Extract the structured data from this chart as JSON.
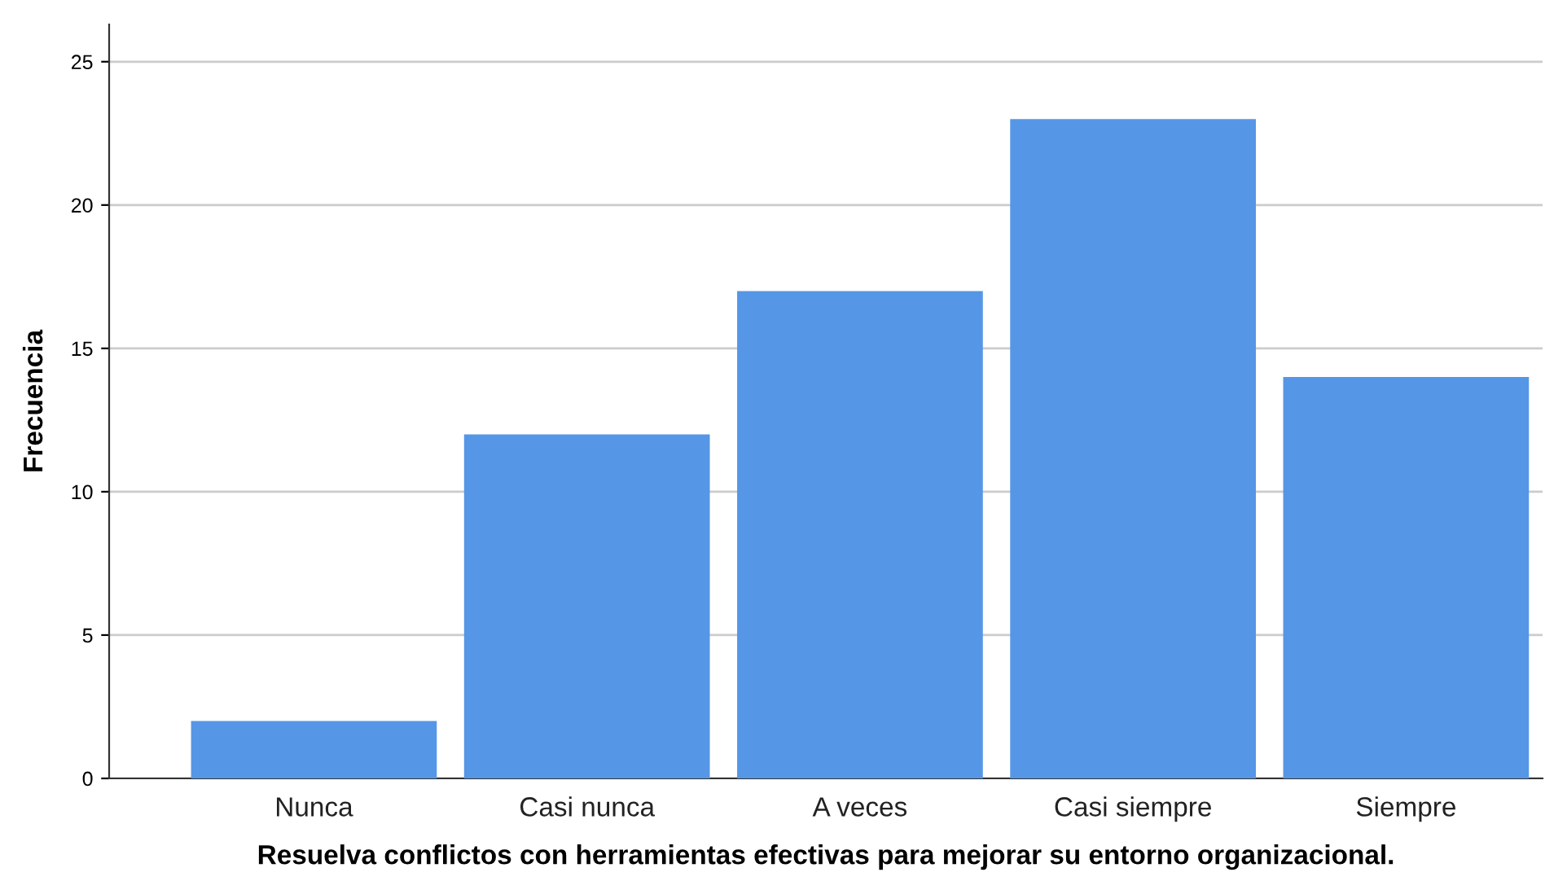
{
  "chart_data": {
    "type": "bar",
    "xlabel": "Resuelva conflictos con herramientas efectivas para mejorar su entorno organizacional.",
    "ylabel": "Frecuencia",
    "categories": [
      "Nunca",
      "Casi nunca",
      "A veces",
      "Casi siempre",
      "Siempre"
    ],
    "values": [
      2,
      12,
      17,
      23,
      14
    ],
    "color": "#5596e6",
    "ylim": [
      0,
      26.3
    ],
    "yticks": [
      0,
      5,
      10,
      15,
      20,
      25
    ],
    "grid": "y",
    "legend": false
  }
}
